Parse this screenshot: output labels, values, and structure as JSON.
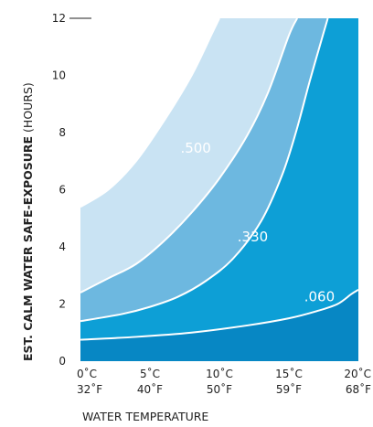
{
  "chart_data": {
    "type": "area",
    "title": "",
    "xlabel": "WATER TEMPERATURE",
    "ylabel_bold": "EST. CALM WATER SAFE-EXPOSURE",
    "ylabel_unit": " (HOURS)",
    "xlim": [
      0,
      20
    ],
    "ylim": [
      0,
      12
    ],
    "x_ticks": [
      0,
      5,
      10,
      15,
      20
    ],
    "x_tick_labels_c": [
      "0˚C",
      "5˚C",
      "10˚C",
      "15˚C",
      "20˚C"
    ],
    "x_tick_labels_f": [
      "32˚F",
      "40˚F",
      "50˚F",
      "59˚F",
      "68˚F"
    ],
    "y_ticks": [
      0,
      2,
      4,
      6,
      8,
      10,
      12
    ],
    "y_tick_labels": [
      "0",
      "2",
      "4",
      "6",
      "8",
      "10",
      "12"
    ],
    "grid": false,
    "legend": "none",
    "series": [
      {
        "name": ".500",
        "color": "#c9e3f3",
        "label_at": [
          8.3,
          7.3
        ],
        "points": [
          [
            0,
            5.4
          ],
          [
            2,
            6.0
          ],
          [
            4,
            7.0
          ],
          [
            6,
            8.4
          ],
          [
            8,
            10.0
          ],
          [
            9.5,
            11.5
          ],
          [
            10,
            12
          ]
        ]
      },
      {
        "name": ".330",
        "color": "#6db8e0",
        "label_at": [
          12.4,
          4.2
        ],
        "points": [
          [
            0,
            2.4
          ],
          [
            2,
            2.9
          ],
          [
            4,
            3.4
          ],
          [
            6,
            4.2
          ],
          [
            8,
            5.2
          ],
          [
            10,
            6.4
          ],
          [
            12,
            7.9
          ],
          [
            13.5,
            9.4
          ],
          [
            15,
            11.4
          ],
          [
            15.6,
            12
          ]
        ]
      },
      {
        "name": ".060",
        "color": "#0d9fd6",
        "label_at": [
          17.2,
          2.1
        ],
        "points": [
          [
            0,
            1.4
          ],
          [
            3,
            1.65
          ],
          [
            5,
            1.9
          ],
          [
            7,
            2.25
          ],
          [
            9,
            2.8
          ],
          [
            11,
            3.6
          ],
          [
            13,
            4.9
          ],
          [
            14.5,
            6.5
          ],
          [
            15.5,
            8.0
          ],
          [
            16.5,
            9.8
          ],
          [
            17.5,
            11.5
          ],
          [
            17.8,
            12
          ]
        ]
      },
      {
        "name": "",
        "color": "#0a94cf",
        "points": [
          [
            0,
            0.75
          ],
          [
            4,
            0.85
          ],
          [
            8,
            1.0
          ],
          [
            12,
            1.25
          ],
          [
            15,
            1.5
          ],
          [
            17,
            1.75
          ],
          [
            18.5,
            2.0
          ],
          [
            19.5,
            2.35
          ],
          [
            20,
            2.5
          ]
        ]
      }
    ],
    "bottom_band_color": "#0787c4"
  }
}
